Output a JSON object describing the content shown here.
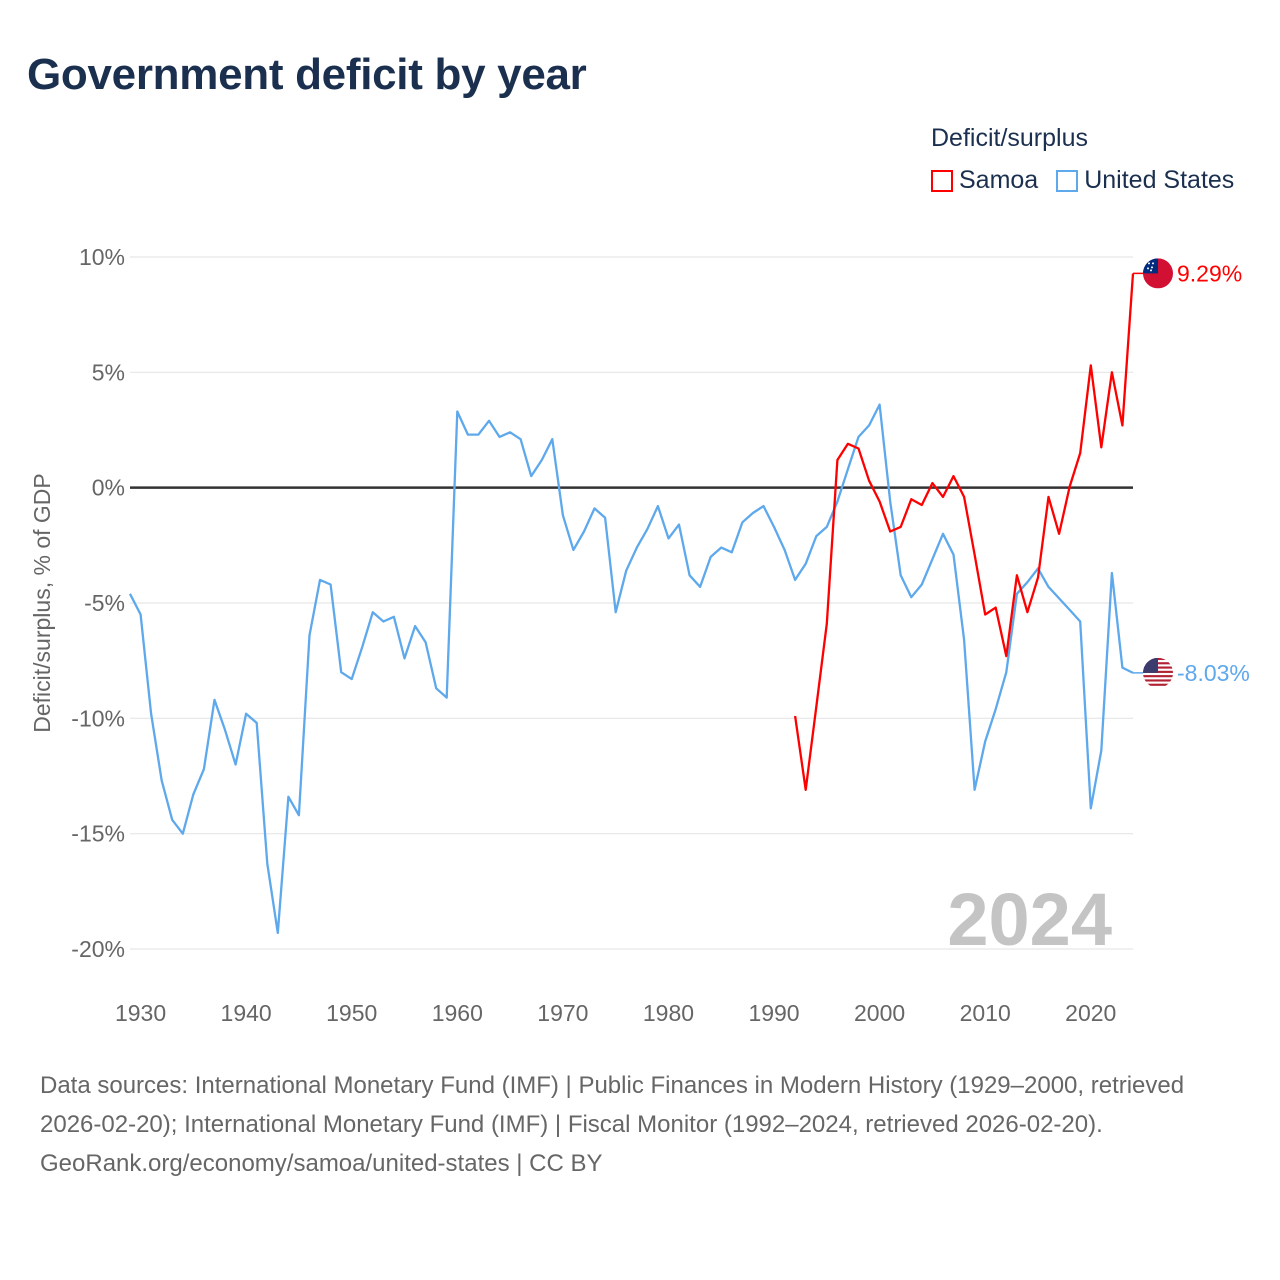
{
  "title": "Government deficit by year",
  "legend": {
    "title": "Deficit/surplus",
    "items": [
      {
        "name": "Samoa",
        "color": "#ff0000"
      },
      {
        "name": "United States",
        "color": "#5ea8ec"
      }
    ]
  },
  "year_watermark": "2024",
  "footer": {
    "sources": "Data sources: International Monetary Fund (IMF) | Public Finances in Modern History (1929–2000, retrieved 2026-02-20); International Monetary Fund (IMF) | Fiscal Monitor (1992–2024, retrieved 2026-02-20).",
    "credit": "GeoRank.org/economy/samoa/united-states | CC BY"
  },
  "chart_data": {
    "type": "line",
    "title": "Government deficit by year",
    "xlabel": "",
    "ylabel": "Deficit/surplus, % of GDP",
    "xlim": [
      1929,
      2024
    ],
    "ylim": [
      -20,
      10
    ],
    "xticks": [
      1930,
      1940,
      1950,
      1960,
      1970,
      1980,
      1990,
      2000,
      2010,
      2020
    ],
    "xtick_labels": [
      "1930",
      "1940",
      "1950",
      "1960",
      "1970",
      "1980",
      "1990",
      "2000",
      "2010",
      "2020"
    ],
    "yticks": [
      10,
      5,
      0,
      -5,
      -10,
      -15,
      -20
    ],
    "ytick_labels": [
      "10%",
      "5%",
      "0%",
      "-5%",
      "-10%",
      "-15%",
      "-20%"
    ],
    "grid": true,
    "legend_position": "top-right",
    "series": [
      {
        "name": "Samoa",
        "color": "#ff0000",
        "end_label": "9.29%",
        "x_start": 1992,
        "values": [
          -9.9,
          -13.1,
          -9.5,
          -5.9,
          1.2,
          1.9,
          1.7,
          0.3,
          -0.6,
          -1.9,
          -1.7,
          -0.5,
          -0.75,
          0.2,
          -0.4,
          0.5,
          -0.4,
          -2.9,
          -5.5,
          -5.2,
          -7.3,
          -3.8,
          -5.4,
          -3.9,
          -0.4,
          -2.0,
          0.05,
          1.5,
          5.3,
          1.75,
          5.0,
          2.7,
          9.29
        ]
      },
      {
        "name": "United States",
        "color": "#5ea8ec",
        "end_label": "-8.03%",
        "x_start": 1929,
        "values": [
          -4.6,
          -5.5,
          -9.8,
          -12.7,
          -14.4,
          -15.0,
          -13.3,
          -12.2,
          -9.2,
          -10.5,
          -12.0,
          -9.8,
          -10.2,
          -16.3,
          -19.3,
          -13.4,
          -14.2,
          -6.4,
          -4.0,
          -4.2,
          -8.0,
          -8.3,
          -6.9,
          -5.4,
          -5.8,
          -5.6,
          -7.4,
          -6.0,
          -6.7,
          -8.7,
          -9.1,
          3.3,
          2.3,
          2.3,
          2.9,
          2.2,
          2.4,
          2.1,
          0.5,
          1.2,
          2.1,
          -1.2,
          -2.7,
          -1.9,
          -0.9,
          -1.3,
          -5.4,
          -3.6,
          -2.6,
          -1.8,
          -0.8,
          -2.2,
          -1.6,
          -3.8,
          -4.3,
          -3.0,
          -2.6,
          -2.8,
          -1.5,
          -1.1,
          -0.8,
          -1.7,
          -2.7,
          -4.0,
          -3.3,
          -2.1,
          -1.7,
          -0.6,
          0.8,
          2.2,
          2.7,
          3.6,
          -0.6,
          -3.8,
          -4.75,
          -4.2,
          -3.1,
          -2.0,
          -2.9,
          -6.6,
          -13.1,
          -11.0,
          -9.6,
          -8.0,
          -4.6,
          -4.1,
          -3.5,
          -4.3,
          -4.8,
          -5.3,
          -5.8,
          -13.9,
          -11.4,
          -3.7,
          -7.8,
          -8.03
        ]
      }
    ]
  }
}
